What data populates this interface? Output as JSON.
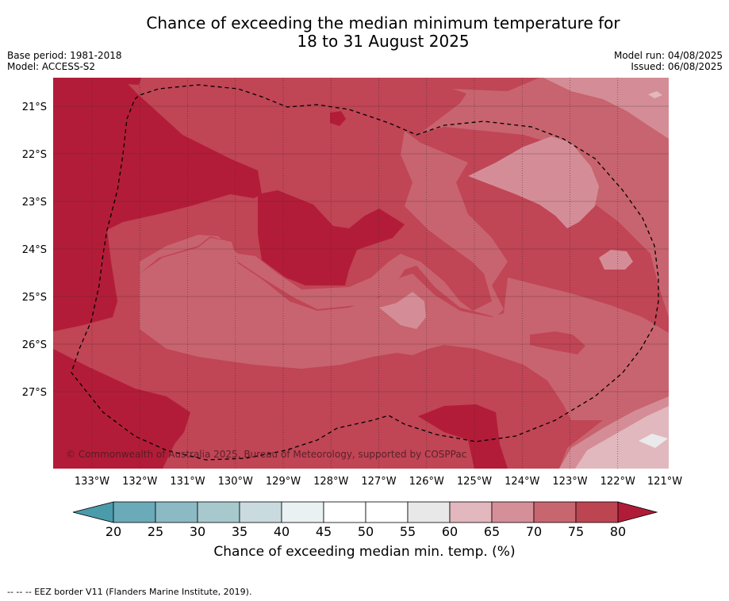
{
  "title_line1": "Chance of exceeding the median minimum temperature for",
  "title_line2": "18 to 31 August 2025",
  "base_period": "Base period: 1981-2018",
  "model": "Model: ACCESS-S2",
  "model_run": "Model run: 04/08/2025",
  "issued": "Issued: 06/08/2025",
  "copyright": "© Commonwealth of Australia 2025, Bureau of Meteorology, supported by COSPPac",
  "lon_labels": [
    "133°W",
    "132°W",
    "131°W",
    "130°W",
    "129°W",
    "128°W",
    "127°W",
    "126°W",
    "125°W",
    "124°W",
    "123°W",
    "122°W",
    "121°W"
  ],
  "lat_labels": [
    "21°S",
    "22°S",
    "23°S",
    "24°S",
    "25°S",
    "26°S",
    "27°S"
  ],
  "colorbar": {
    "ticks": [
      "20",
      "25",
      "30",
      "35",
      "40",
      "45",
      "50",
      "55",
      "60",
      "65",
      "70",
      "75",
      "80"
    ],
    "colors": [
      "#6aaab9",
      "#8bbac5",
      "#a7c9ce",
      "#c9dbde",
      "#eaf1f3",
      "#ffffff",
      "#ffffff",
      "#e8e8e8",
      "#e2b7bd",
      "#d58f98",
      "#c8666f",
      "#bd4552"
    ],
    "under_color": "#4a9cab",
    "over_color": "#b01c38",
    "label": "Chance of exceeding median min. temp. (%)"
  },
  "map_colors": {
    "c80": "#b31c38",
    "c75": "#c04555",
    "c70": "#c8646f",
    "c65": "#d48d96",
    "c60": "#e1b8bd",
    "c55": "#eaeaec"
  },
  "footnote": "--  --  -- EEZ border V11 (Flanders Marine Institute, 2019)."
}
